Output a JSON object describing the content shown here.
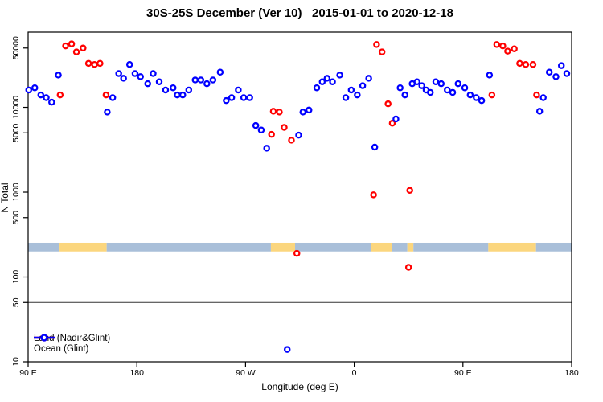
{
  "chart_data": {
    "type": "scatter",
    "title": "30S-25S December (Ver 10)   2015-01-01 to 2020-12-18",
    "xlabel": "Longitude (deg E)",
    "ylabel": "N Total",
    "xlim": [
      90,
      540
    ],
    "ylim": [
      10,
      77000
    ],
    "y_scale": "log",
    "x_ticks": [
      {
        "value": 90,
        "label": "90 E"
      },
      {
        "value": 180,
        "label": "180"
      },
      {
        "value": 270,
        "label": "90 W"
      },
      {
        "value": 360,
        "label": "0"
      },
      {
        "value": 450,
        "label": "90 E"
      },
      {
        "value": 540,
        "label": "180"
      }
    ],
    "y_ticks": [
      {
        "value": 10,
        "label": "10"
      },
      {
        "value": 50,
        "label": "50"
      },
      {
        "value": 100,
        "label": "100"
      },
      {
        "value": 500,
        "label": "500"
      },
      {
        "value": 1000,
        "label": "1000"
      },
      {
        "value": 5000,
        "label": "5000"
      },
      {
        "value": 10000,
        "label": "10000"
      },
      {
        "value": 50000,
        "label": "50000"
      }
    ],
    "reference_line_n": 50,
    "reference_line_color": "#333333",
    "surface_band": {
      "note": "land/ocean strip along longitude",
      "n_range": [
        200,
        253
      ],
      "ocean_color": "#A9BFD9",
      "land_color": "#FBD67E",
      "segments": [
        {
          "type": "ocean",
          "lon": [
            90,
            116
          ]
        },
        {
          "type": "land",
          "lon": [
            116,
            155
          ]
        },
        {
          "type": "ocean",
          "lon": [
            155,
            291
          ]
        },
        {
          "type": "land",
          "lon": [
            291,
            311
          ]
        },
        {
          "type": "ocean",
          "lon": [
            311,
            374
          ]
        },
        {
          "type": "land",
          "lon": [
            374,
            391.5
          ]
        },
        {
          "type": "ocean",
          "lon": [
            391.5,
            404
          ]
        },
        {
          "type": "land",
          "lon": [
            404,
            409
          ]
        },
        {
          "type": "ocean",
          "lon": [
            409,
            471
          ]
        },
        {
          "type": "land",
          "lon": [
            471,
            510.5
          ]
        },
        {
          "type": "ocean",
          "lon": [
            510.5,
            540
          ]
        }
      ]
    },
    "series": [
      {
        "name": "Land (Nadir&Glint)",
        "color": "#FF0000",
        "points": [
          {
            "lon": 116.5,
            "n": 14000
          },
          {
            "lon": 121,
            "n": 53000
          },
          {
            "lon": 126,
            "n": 56000
          },
          {
            "lon": 130,
            "n": 45000
          },
          {
            "lon": 135.5,
            "n": 50000
          },
          {
            "lon": 140,
            "n": 33000
          },
          {
            "lon": 145,
            "n": 32000
          },
          {
            "lon": 149.5,
            "n": 33000
          },
          {
            "lon": 154.5,
            "n": 14000
          },
          {
            "lon": 291.5,
            "n": 4800
          },
          {
            "lon": 293,
            "n": 9000
          },
          {
            "lon": 298,
            "n": 8800
          },
          {
            "lon": 302,
            "n": 5800
          },
          {
            "lon": 308,
            "n": 4100
          },
          {
            "lon": 312.5,
            "n": 190
          },
          {
            "lon": 376,
            "n": 930
          },
          {
            "lon": 378.5,
            "n": 55000
          },
          {
            "lon": 383,
            "n": 45000
          },
          {
            "lon": 388,
            "n": 11000
          },
          {
            "lon": 391.5,
            "n": 6500
          },
          {
            "lon": 405,
            "n": 130
          },
          {
            "lon": 406,
            "n": 1050
          },
          {
            "lon": 474,
            "n": 14000
          },
          {
            "lon": 478,
            "n": 55000
          },
          {
            "lon": 483,
            "n": 53000
          },
          {
            "lon": 487,
            "n": 46000
          },
          {
            "lon": 492.5,
            "n": 49000
          },
          {
            "lon": 497,
            "n": 33000
          },
          {
            "lon": 502,
            "n": 32000
          },
          {
            "lon": 508,
            "n": 32000
          },
          {
            "lon": 511,
            "n": 14000
          }
        ]
      },
      {
        "name": "Ocean (Glint)",
        "color": "#0000FF",
        "points": [
          {
            "lon": 90.5,
            "n": 16000
          },
          {
            "lon": 95.5,
            "n": 17000
          },
          {
            "lon": 100.5,
            "n": 14000
          },
          {
            "lon": 105,
            "n": 13000
          },
          {
            "lon": 109.5,
            "n": 11500
          },
          {
            "lon": 115,
            "n": 24000
          },
          {
            "lon": 155.5,
            "n": 8800
          },
          {
            "lon": 160,
            "n": 13000
          },
          {
            "lon": 165,
            "n": 25000
          },
          {
            "lon": 169,
            "n": 22000
          },
          {
            "lon": 174,
            "n": 32000
          },
          {
            "lon": 178.5,
            "n": 25000
          },
          {
            "lon": 183,
            "n": 23000
          },
          {
            "lon": 189,
            "n": 19000
          },
          {
            "lon": 193.5,
            "n": 25000
          },
          {
            "lon": 198.5,
            "n": 20000
          },
          {
            "lon": 203.8,
            "n": 16000
          },
          {
            "lon": 210,
            "n": 17000
          },
          {
            "lon": 213.5,
            "n": 14000
          },
          {
            "lon": 218,
            "n": 14000
          },
          {
            "lon": 223,
            "n": 16000
          },
          {
            "lon": 228.3,
            "n": 21000
          },
          {
            "lon": 233,
            "n": 21000
          },
          {
            "lon": 238,
            "n": 19000
          },
          {
            "lon": 243,
            "n": 21000
          },
          {
            "lon": 249,
            "n": 26000
          },
          {
            "lon": 254,
            "n": 12000
          },
          {
            "lon": 258.5,
            "n": 13000
          },
          {
            "lon": 264,
            "n": 16000
          },
          {
            "lon": 268.5,
            "n": 13000
          },
          {
            "lon": 273.5,
            "n": 13000
          },
          {
            "lon": 278.5,
            "n": 6100
          },
          {
            "lon": 283,
            "n": 5400
          },
          {
            "lon": 287.5,
            "n": 3300
          },
          {
            "lon": 304.5,
            "n": 14
          },
          {
            "lon": 314,
            "n": 4700
          },
          {
            "lon": 317.5,
            "n": 8800
          },
          {
            "lon": 322.5,
            "n": 9300
          },
          {
            "lon": 329,
            "n": 17000
          },
          {
            "lon": 333.5,
            "n": 20000
          },
          {
            "lon": 337.5,
            "n": 22000
          },
          {
            "lon": 342,
            "n": 20000
          },
          {
            "lon": 348,
            "n": 24000
          },
          {
            "lon": 353,
            "n": 13000
          },
          {
            "lon": 357.5,
            "n": 16000
          },
          {
            "lon": 362.5,
            "n": 14000
          },
          {
            "lon": 367,
            "n": 18000
          },
          {
            "lon": 372,
            "n": 22000
          },
          {
            "lon": 377,
            "n": 3400
          },
          {
            "lon": 394.5,
            "n": 7300
          },
          {
            "lon": 398,
            "n": 17000
          },
          {
            "lon": 402,
            "n": 14000
          },
          {
            "lon": 408,
            "n": 19000
          },
          {
            "lon": 412,
            "n": 20000
          },
          {
            "lon": 416,
            "n": 18000
          },
          {
            "lon": 419.5,
            "n": 16000
          },
          {
            "lon": 423,
            "n": 15000
          },
          {
            "lon": 427.5,
            "n": 20000
          },
          {
            "lon": 432,
            "n": 19000
          },
          {
            "lon": 437,
            "n": 16000
          },
          {
            "lon": 441.5,
            "n": 15000
          },
          {
            "lon": 446,
            "n": 19000
          },
          {
            "lon": 451.5,
            "n": 17000
          },
          {
            "lon": 456,
            "n": 14000
          },
          {
            "lon": 461,
            "n": 13000
          },
          {
            "lon": 465.5,
            "n": 12000
          },
          {
            "lon": 472,
            "n": 24000
          },
          {
            "lon": 513.5,
            "n": 9000
          },
          {
            "lon": 516.5,
            "n": 13000
          },
          {
            "lon": 521.5,
            "n": 26000
          },
          {
            "lon": 527,
            "n": 23000
          },
          {
            "lon": 531.5,
            "n": 31000
          },
          {
            "lon": 536,
            "n": 25000
          }
        ]
      }
    ],
    "legend_position": "bottom-left"
  }
}
